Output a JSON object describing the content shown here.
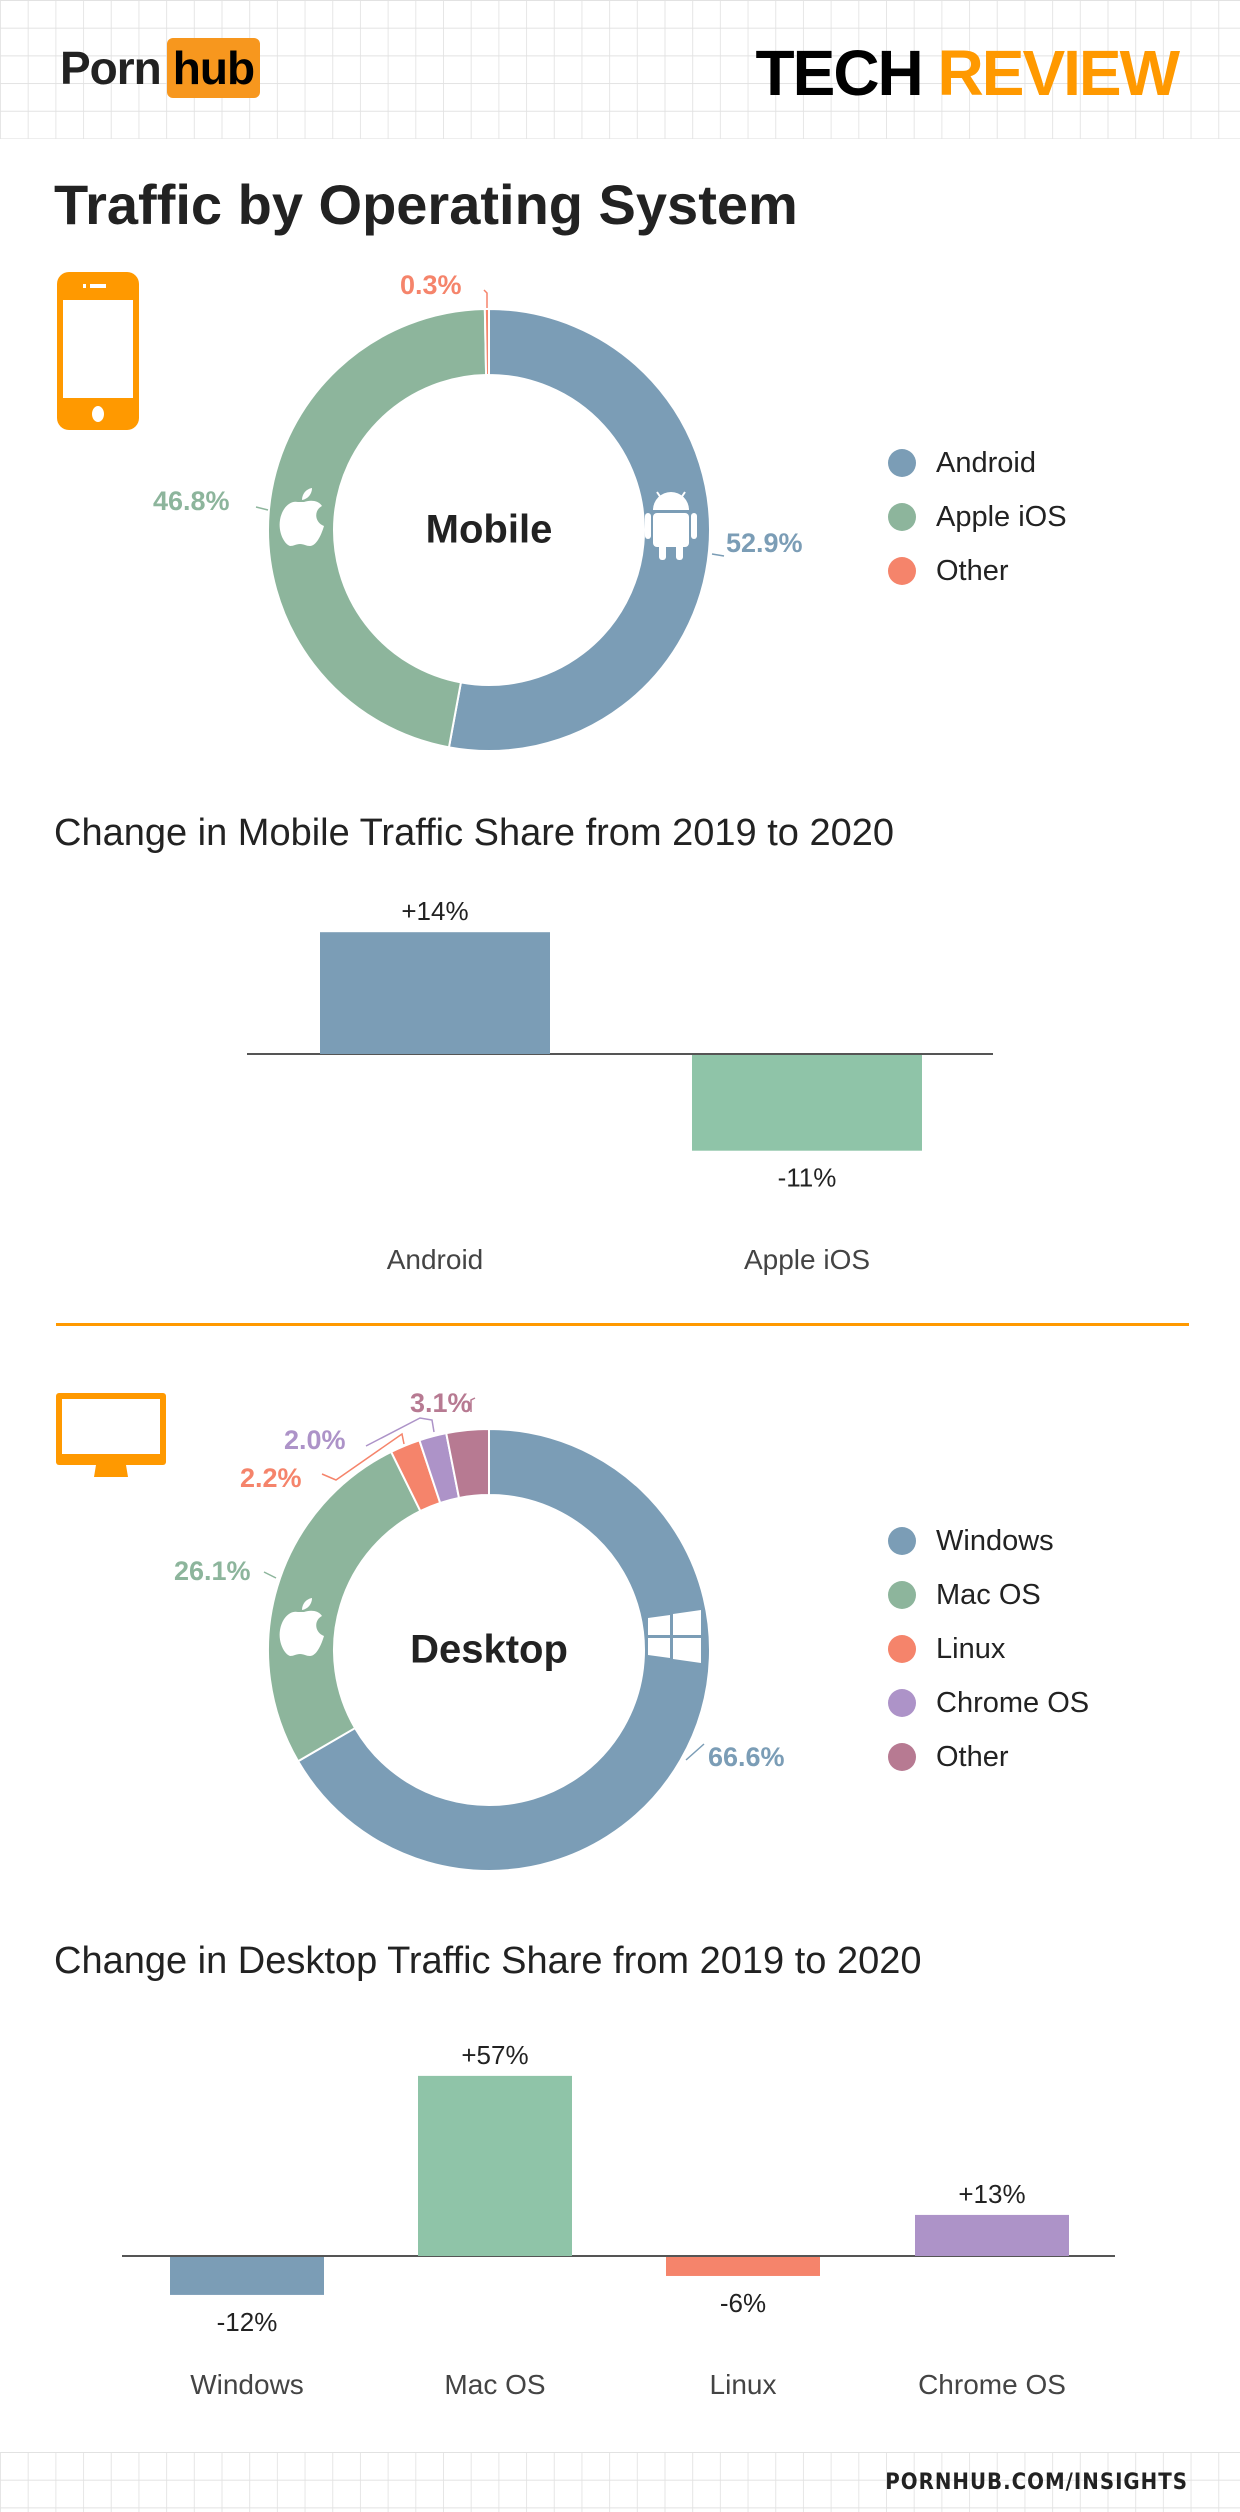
{
  "header": {
    "logo_left": "Porn",
    "logo_right": "hub",
    "tech": "TECH",
    "review": "REVIEW"
  },
  "page_title": "Traffic by Operating System",
  "footer": "PORNHUB.COM/INSIGHTS",
  "colors": {
    "accent": "#ff9900",
    "blue": "#7b9db6",
    "green": "#8db59c",
    "green_bar": "#8fc4a8",
    "orange": "#f5846b",
    "purple": "#ad93c8",
    "mauve": "#b77a92"
  },
  "chart_data": [
    {
      "type": "pie",
      "title": "Mobile",
      "center_label": "Mobile",
      "slices": [
        {
          "name": "Android",
          "value": 52.9,
          "label": "52.9%",
          "color": "#7b9db6",
          "icon": "android-icon"
        },
        {
          "name": "Apple iOS",
          "value": 46.8,
          "label": "46.8%",
          "color": "#8db59c",
          "icon": "apple-icon"
        },
        {
          "name": "Other",
          "value": 0.3,
          "label": "0.3%",
          "color": "#f5846b"
        }
      ],
      "legend": [
        "Android",
        "Apple iOS",
        "Other"
      ],
      "legend_placement": "right"
    },
    {
      "type": "bar",
      "title": "Change in Mobile Traffic Share from 2019 to 2020",
      "categories": [
        "Android",
        "Apple iOS"
      ],
      "values": [
        14,
        -11
      ],
      "labels": [
        "+14%",
        "-11%"
      ],
      "colors": [
        "#7b9db6",
        "#8fc4a8"
      ]
    },
    {
      "type": "pie",
      "title": "Desktop",
      "center_label": "Desktop",
      "slices": [
        {
          "name": "Windows",
          "value": 66.6,
          "label": "66.6%",
          "color": "#7b9db6",
          "icon": "windows-icon"
        },
        {
          "name": "Mac OS",
          "value": 26.1,
          "label": "26.1%",
          "color": "#8db59c",
          "icon": "apple-icon"
        },
        {
          "name": "Linux",
          "value": 2.2,
          "label": "2.2%",
          "color": "#f5846b"
        },
        {
          "name": "Chrome OS",
          "value": 2.0,
          "label": "2.0%",
          "color": "#ad93c8"
        },
        {
          "name": "Other",
          "value": 3.1,
          "label": "3.1%",
          "color": "#b77a92"
        }
      ],
      "legend": [
        "Windows",
        "Mac OS",
        "Linux",
        "Chrome OS",
        "Other"
      ],
      "legend_placement": "right"
    },
    {
      "type": "bar",
      "title": "Change in Desktop Traffic Share from 2019 to 2020",
      "categories": [
        "Windows",
        "Mac OS",
        "Linux",
        "Chrome OS"
      ],
      "values": [
        -12,
        57,
        -6,
        13
      ],
      "labels": [
        "-12%",
        "+57%",
        "-6%",
        "+13%"
      ],
      "colors": [
        "#7b9db6",
        "#8fc4a8",
        "#f5846b",
        "#ad93c8"
      ]
    }
  ]
}
